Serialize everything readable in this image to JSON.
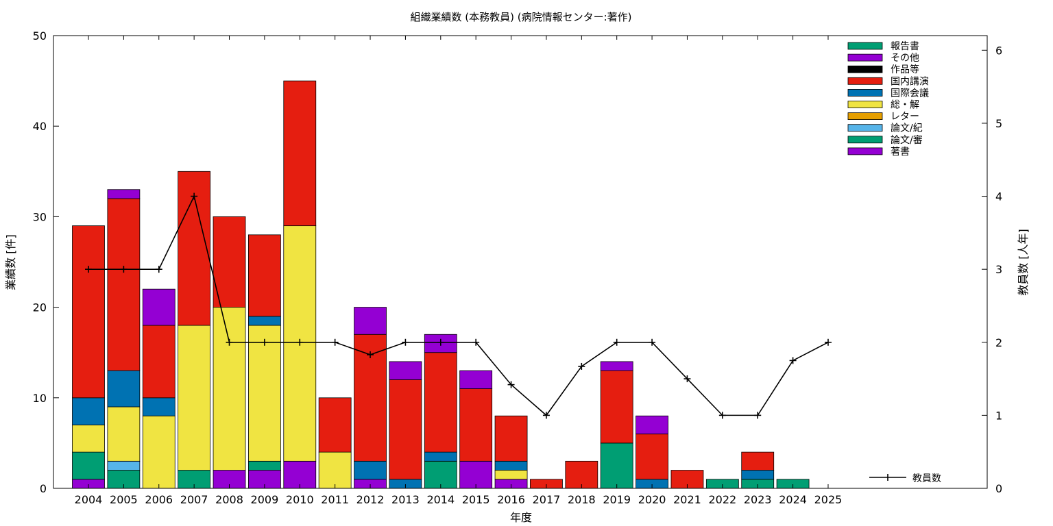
{
  "chart_data": {
    "type": "bar",
    "stacked": true,
    "title": "組織業績数 (本務教員) (病院情報センター:著作)",
    "xlabel": "年度",
    "ylabel": "業績数 [件]",
    "y2label": "教員数 [人年]",
    "ylim": [
      0,
      50
    ],
    "y2lim": [
      0,
      6.2
    ],
    "yticks": [
      0,
      10,
      20,
      30,
      40,
      50
    ],
    "y2ticks": [
      0,
      1,
      2,
      3,
      4,
      5,
      6
    ],
    "grid": false,
    "legend_position": "top-right",
    "categories": [
      "2004",
      "2005",
      "2006",
      "2007",
      "2008",
      "2009",
      "2010",
      "2011",
      "2012",
      "2013",
      "2014",
      "2015",
      "2016",
      "2017",
      "2018",
      "2019",
      "2020",
      "2021",
      "2022",
      "2023",
      "2024",
      "2025"
    ],
    "series": [
      {
        "name": "著書",
        "color": "#9400d3",
        "values": [
          1,
          0,
          0,
          0,
          2,
          2,
          3,
          0,
          1,
          0,
          0,
          3,
          1,
          0,
          0,
          0,
          0,
          0,
          0,
          0,
          0,
          0
        ]
      },
      {
        "name": "論文/審",
        "color": "#009e73",
        "values": [
          3,
          2,
          0,
          2,
          0,
          1,
          0,
          0,
          0,
          0,
          3,
          0,
          0,
          0,
          0,
          5,
          0,
          0,
          1,
          1,
          1,
          0
        ]
      },
      {
        "name": "論文/紀",
        "color": "#56b4e9",
        "values": [
          0,
          1,
          0,
          0,
          0,
          0,
          0,
          0,
          0,
          0,
          0,
          0,
          0,
          0,
          0,
          0,
          0,
          0,
          0,
          0,
          0,
          0
        ]
      },
      {
        "name": "レター",
        "color": "#e69f00",
        "values": [
          0,
          0,
          0,
          0,
          0,
          0,
          0,
          0,
          0,
          0,
          0,
          0,
          0,
          0,
          0,
          0,
          0,
          0,
          0,
          0,
          0,
          0
        ]
      },
      {
        "name": "総・解",
        "color": "#f0e442",
        "values": [
          3,
          6,
          8,
          16,
          18,
          15,
          26,
          4,
          0,
          0,
          0,
          0,
          1,
          0,
          0,
          0,
          0,
          0,
          0,
          0,
          0,
          0
        ]
      },
      {
        "name": "国際会議",
        "color": "#0072b2",
        "values": [
          3,
          4,
          2,
          0,
          0,
          1,
          0,
          0,
          2,
          1,
          1,
          0,
          1,
          0,
          0,
          0,
          1,
          0,
          0,
          1,
          0,
          0
        ]
      },
      {
        "name": "国内講演",
        "color": "#e51e10",
        "values": [
          19,
          19,
          8,
          17,
          10,
          9,
          16,
          6,
          14,
          11,
          11,
          8,
          5,
          1,
          3,
          8,
          5,
          2,
          0,
          2,
          0,
          0
        ]
      },
      {
        "name": "作品等",
        "color": "#000000",
        "values": [
          0,
          0,
          0,
          0,
          0,
          0,
          0,
          0,
          0,
          0,
          0,
          0,
          0,
          0,
          0,
          0,
          0,
          0,
          0,
          0,
          0,
          0
        ]
      },
      {
        "name": "その他",
        "color": "#9400d3",
        "values": [
          0,
          1,
          4,
          0,
          0,
          0,
          0,
          0,
          3,
          2,
          2,
          2,
          0,
          0,
          0,
          1,
          2,
          0,
          0,
          0,
          0,
          0
        ]
      },
      {
        "name": "報告書",
        "color": "#009e73",
        "values": [
          0,
          0,
          0,
          0,
          0,
          0,
          0,
          0,
          0,
          0,
          0,
          0,
          0,
          0,
          0,
          0,
          0,
          0,
          0,
          0,
          0,
          0
        ]
      }
    ],
    "legend_order": [
      "報告書",
      "その他",
      "作品等",
      "国内講演",
      "国際会議",
      "総・解",
      "レター",
      "論文/紀",
      "論文/審",
      "著書"
    ],
    "line_series": {
      "name": "教員数",
      "color": "#000000",
      "axis": "y2",
      "values": [
        3,
        3,
        3,
        4,
        2,
        2,
        2,
        2,
        1.83,
        2,
        2,
        2,
        1.42,
        1,
        1.67,
        2,
        2,
        1.5,
        1,
        1,
        1.75,
        2
      ]
    }
  }
}
